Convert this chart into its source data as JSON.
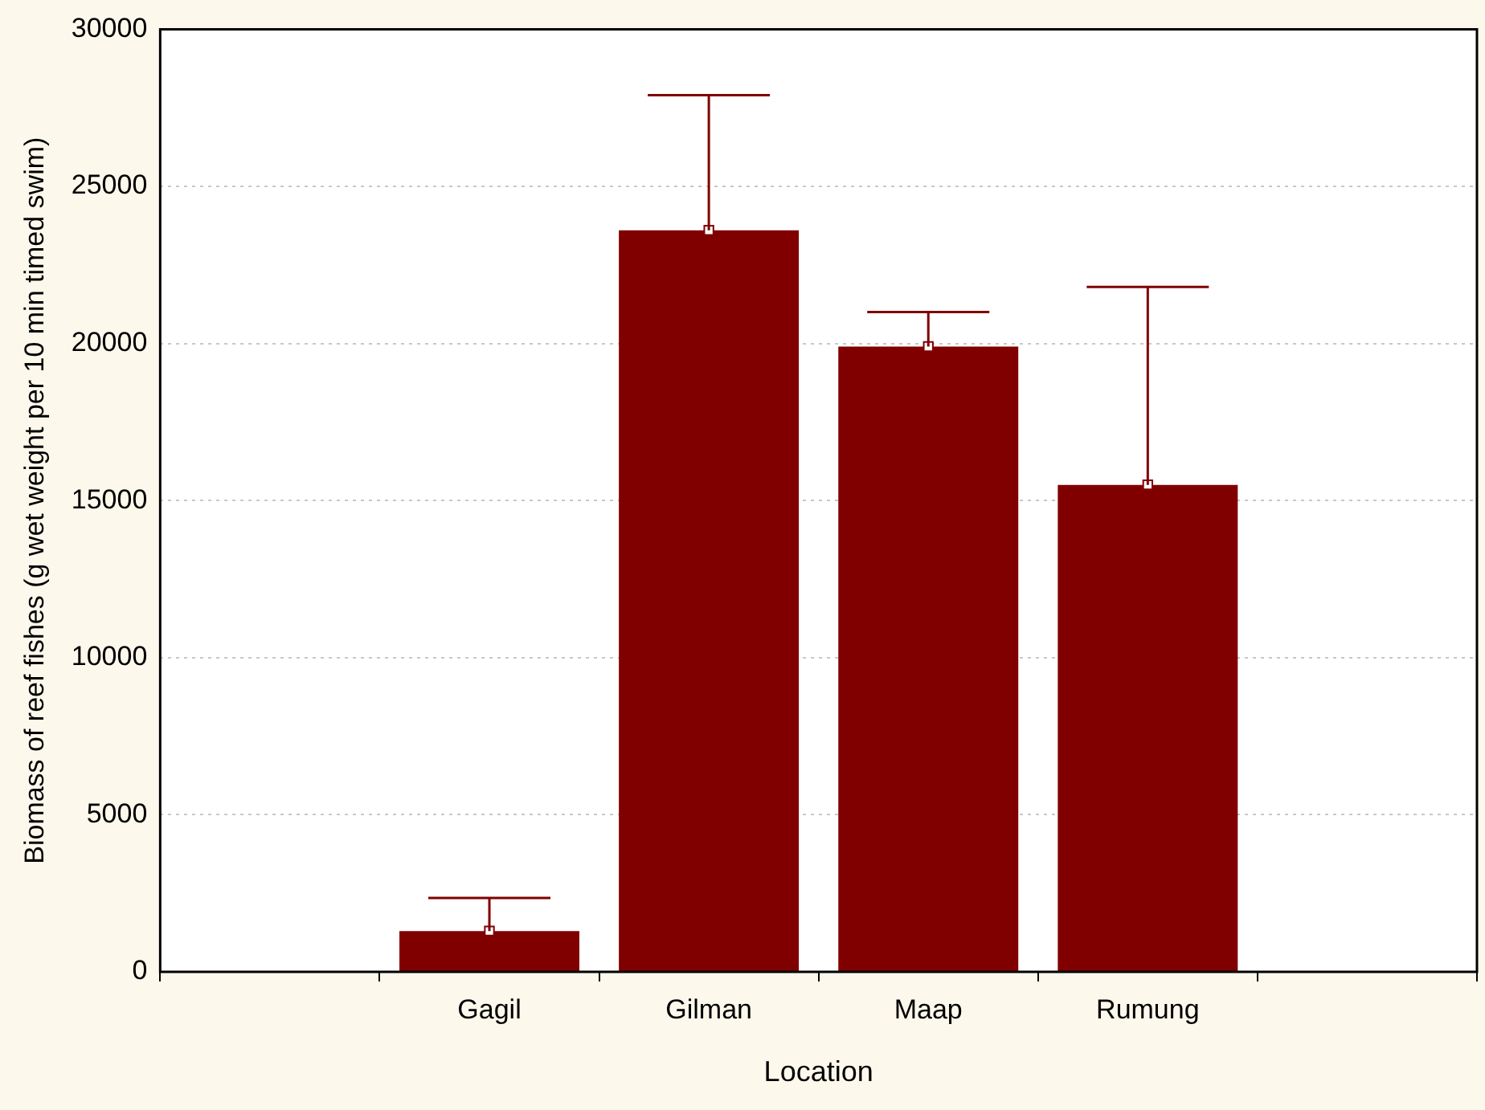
{
  "chart_data": {
    "type": "bar",
    "xlabel": "Location",
    "ylabel": "Biomass of reef fishes (g wet weight per 10 min timed swim)",
    "categories": [
      null,
      "Gagil",
      "Gilman",
      "Maap",
      "Rumung",
      null
    ],
    "series": [
      {
        "color": "#800000",
        "values": [
          null,
          1300,
          23600,
          19900,
          15500,
          null
        ],
        "errors": [
          null,
          [
            1300,
            2350
          ],
          [
            23600,
            27900
          ],
          [
            19900,
            21000
          ],
          [
            15500,
            21800
          ],
          null
        ]
      },
      {
        "type": "scatter",
        "color": "#ffffff",
        "x": [
          "Gagil",
          "Gilman",
          "Maap",
          "Rumung"
        ],
        "values": [
          1300,
          23600,
          19900,
          15500
        ]
      }
    ],
    "marker": "square",
    "ylim": [
      0,
      30000
    ],
    "yticks": [
      0,
      5000,
      10000,
      15000,
      20000,
      25000,
      30000
    ],
    "grid": "y",
    "legend": false
  }
}
